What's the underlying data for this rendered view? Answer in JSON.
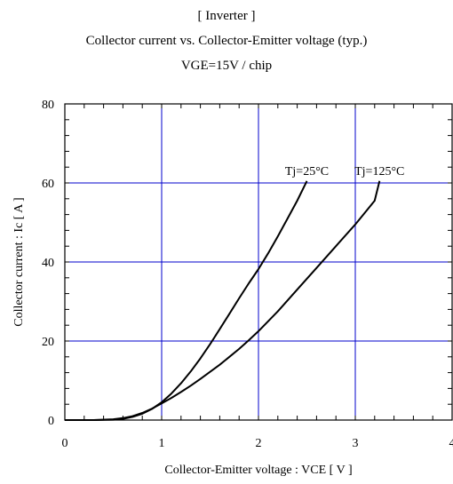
{
  "chart_data": {
    "type": "line",
    "title": "[ Inverter ]",
    "subtitle": "Collector current vs. Collector-Emitter voltage (typ.)",
    "condition": "VGE=15V / chip",
    "xlabel": "Collector-Emitter voltage : VCE [ V ]",
    "ylabel": "Collector current : Ic [ A ]",
    "xlim": [
      0,
      4
    ],
    "ylim": [
      0,
      80
    ],
    "x_ticks": [
      0,
      1,
      2,
      3,
      4
    ],
    "y_ticks": [
      0,
      20,
      40,
      60,
      80
    ],
    "grid": true,
    "grid_color": "#0000cc",
    "line_color": "#000000",
    "series": [
      {
        "name": "Tj=25°C",
        "x": [
          0,
          0.3,
          0.5,
          0.6,
          0.7,
          0.8,
          0.9,
          1.0,
          1.1,
          1.2,
          1.3,
          1.4,
          1.5,
          1.6,
          1.7,
          1.8,
          1.9,
          2.0,
          2.1,
          2.2,
          2.3,
          2.4,
          2.5
        ],
        "y": [
          0,
          0,
          0.1,
          0.3,
          0.8,
          1.6,
          2.8,
          4.5,
          6.7,
          9.3,
          12.3,
          15.6,
          19.2,
          23.0,
          26.9,
          30.8,
          34.6,
          38.2,
          42.2,
          46.5,
          51.0,
          55.5,
          60.5
        ]
      },
      {
        "name": "Tj=125°C",
        "x": [
          0,
          0.3,
          0.5,
          0.6,
          0.7,
          0.8,
          0.9,
          1.0,
          1.1,
          1.2,
          1.3,
          1.4,
          1.5,
          1.6,
          1.7,
          1.8,
          1.9,
          2.0,
          2.2,
          2.4,
          2.6,
          2.8,
          3.0,
          3.2,
          3.25
        ],
        "y": [
          0,
          0,
          0.2,
          0.5,
          1.0,
          1.8,
          2.9,
          4.2,
          5.6,
          7.1,
          8.7,
          10.4,
          12.2,
          14.0,
          16.0,
          18.0,
          20.2,
          22.5,
          27.5,
          33.0,
          38.5,
          44.0,
          49.5,
          55.5,
          60.5
        ]
      }
    ]
  }
}
